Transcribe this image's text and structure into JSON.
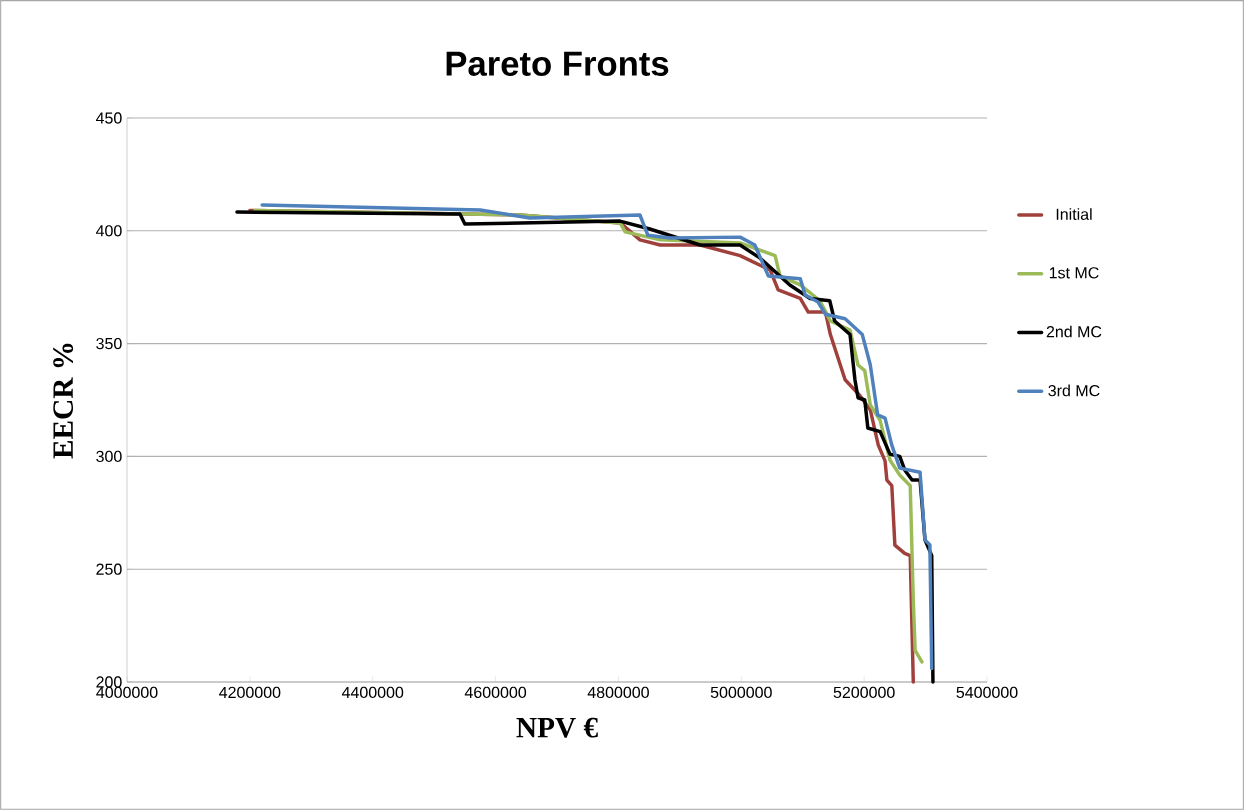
{
  "chart_data": {
    "type": "line",
    "title": "Pareto Fronts",
    "xlabel": "NPV €",
    "ylabel": "EECR %",
    "xlim": [
      4000000,
      5400000
    ],
    "xticks": [
      4000000,
      4200000,
      4400000,
      4600000,
      4800000,
      5000000,
      5200000,
      5400000
    ],
    "ylim": [
      200,
      450
    ],
    "yticks": [
      200,
      250,
      300,
      350,
      400,
      450
    ],
    "grid": "y",
    "legend": "right",
    "marker": "none",
    "line_style": "solid",
    "series": [
      {
        "name": "Initial",
        "color": "#a0403c",
        "x": [
          4200000,
          4640000,
          4803000,
          4835000,
          4868000,
          4933000,
          4998000,
          5047000,
          5060000,
          5096000,
          5109000,
          5137000,
          5145000,
          5169000,
          5193000,
          5210000,
          5223000,
          5234000,
          5237000,
          5245000,
          5250000,
          5266000,
          5275000,
          5280000
        ],
        "values": [
          409,
          407,
          403.5,
          396,
          393.7,
          393.7,
          389,
          382.6,
          373.8,
          370,
          364,
          364,
          354,
          334,
          327,
          320.6,
          305,
          298,
          289.5,
          287,
          260.7,
          257,
          256,
          200
        ]
      },
      {
        "name": "1st MC",
        "color": "#9bbb59",
        "x": [
          4208000,
          4640000,
          4803000,
          4811000,
          4868000,
          4998000,
          5055000,
          5063000,
          5096000,
          5128000,
          5145000,
          5177000,
          5190000,
          5201000,
          5210000,
          5226000,
          5242000,
          5258000,
          5275000,
          5280000,
          5283000,
          5294000
        ],
        "values": [
          409,
          407,
          403.5,
          399.5,
          396,
          394.6,
          389,
          380,
          376,
          369,
          360,
          356,
          340.5,
          338,
          322.8,
          316,
          298.4,
          291.7,
          287,
          236,
          214,
          208.9
        ]
      },
      {
        "name": "2nd MC",
        "color": "#000000",
        "x": [
          4179000,
          4542000,
          4550000,
          4802600,
          4851000,
          4933000,
          4998000,
          5030000,
          5079000,
          5112000,
          5144000,
          5152000,
          5177000,
          5185000,
          5190000,
          5201000,
          5206000,
          5226000,
          5242000,
          5258000,
          5266000,
          5278000,
          5291000,
          5299000,
          5310000,
          5312000
        ],
        "values": [
          408.3,
          407.4,
          403,
          404.3,
          400.8,
          393.7,
          393.7,
          388,
          376,
          370,
          369,
          360,
          354,
          334,
          326,
          325,
          312.6,
          311,
          301,
          300,
          294,
          289.5,
          289.5,
          263,
          256,
          200
        ]
      },
      {
        "name": "3rd MC",
        "color": "#4f81bd",
        "x": [
          4220000,
          4575000,
          4656000,
          4835000,
          4848000,
          4884000,
          4998000,
          5022000,
          5044000,
          5096000,
          5104000,
          5125000,
          5137000,
          5169000,
          5197000,
          5210000,
          5222000,
          5234000,
          5245000,
          5258000,
          5291000,
          5299000,
          5307000,
          5310000
        ],
        "values": [
          411.4,
          409.2,
          405.7,
          407,
          398,
          396.8,
          397.2,
          393.7,
          380,
          378.7,
          371.5,
          368.4,
          363,
          361,
          354,
          340.5,
          318.4,
          317,
          305,
          294.8,
          293,
          263,
          260.7,
          206
        ]
      }
    ]
  }
}
